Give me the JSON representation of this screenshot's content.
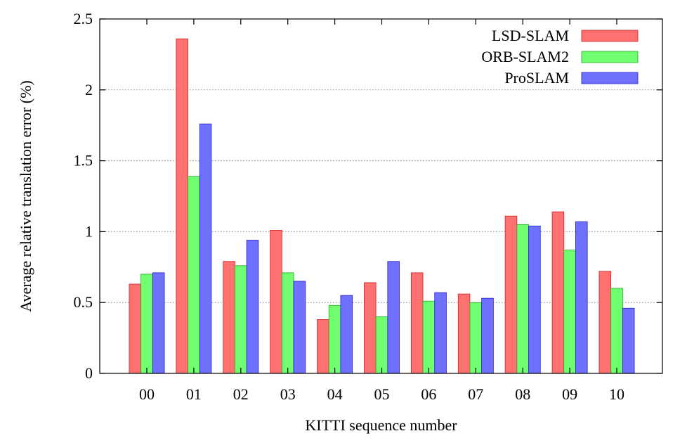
{
  "chart_data": {
    "type": "bar",
    "categories": [
      "00",
      "01",
      "02",
      "03",
      "04",
      "05",
      "06",
      "07",
      "08",
      "09",
      "10"
    ],
    "series": [
      {
        "name": "LSD-SLAM",
        "color": "#ff7070",
        "stroke": "#cc2222",
        "values": [
          0.63,
          2.36,
          0.79,
          1.01,
          0.38,
          0.64,
          0.71,
          0.56,
          1.11,
          1.14,
          0.72
        ]
      },
      {
        "name": "ORB-SLAM2",
        "color": "#70ff70",
        "stroke": "#22aa22",
        "values": [
          0.7,
          1.39,
          0.76,
          0.71,
          0.48,
          0.4,
          0.51,
          0.5,
          1.05,
          0.87,
          0.6
        ]
      },
      {
        "name": "ProSLAM",
        "color": "#7070ff",
        "stroke": "#2222cc",
        "values": [
          0.71,
          1.76,
          0.94,
          0.65,
          0.55,
          0.79,
          0.57,
          0.53,
          1.04,
          1.07,
          0.46
        ]
      }
    ],
    "ylim": [
      0,
      2.5
    ],
    "yticks": [
      0,
      0.5,
      1,
      1.5,
      2,
      2.5
    ],
    "ytick_labels": [
      "0",
      "0.5",
      "1",
      "1.5",
      "2",
      "2.5"
    ],
    "xlabel": "KITTI sequence number",
    "ylabel": "Average relative translation error (%)",
    "grid": "horizontal dotted",
    "legend_position": "top-right"
  }
}
